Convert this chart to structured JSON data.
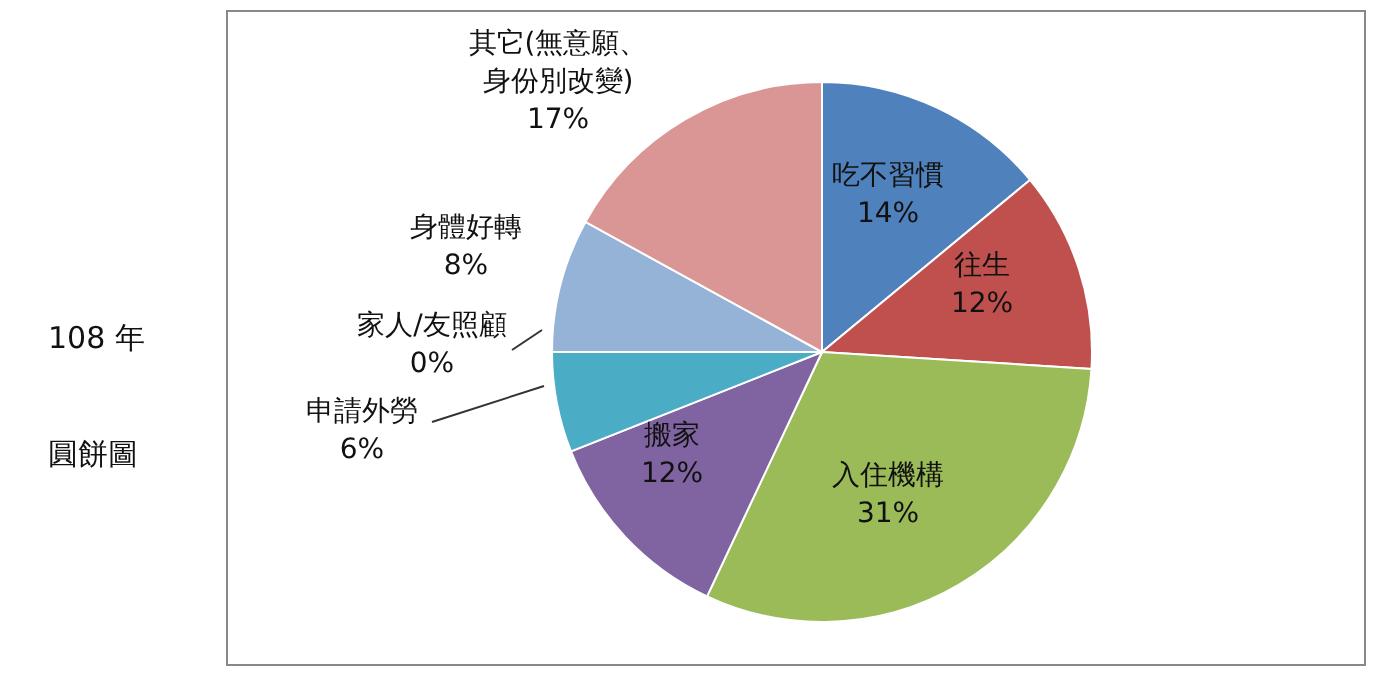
{
  "chart_data": {
    "type": "pie",
    "categories": [
      "吃不習慣",
      "往生",
      "入住機構",
      "搬家",
      "申請外勞",
      "家人/友照顧",
      "身體好轉",
      "其它(無意願、身份別改變)"
    ],
    "values": [
      14,
      12,
      31,
      12,
      6,
      0,
      8,
      17
    ],
    "value_labels": [
      "14%",
      "12%",
      "31%",
      "12%",
      "6%",
      "0%",
      "8%",
      "17%"
    ],
    "colors": [
      "#4f81bd",
      "#c0504d",
      "#9bbb59",
      "#8064a2",
      "#4bacc6",
      "#f79646",
      "#95b3d7",
      "#d99694"
    ],
    "annotations": [
      "108 年",
      "圓餅圖"
    ]
  }
}
